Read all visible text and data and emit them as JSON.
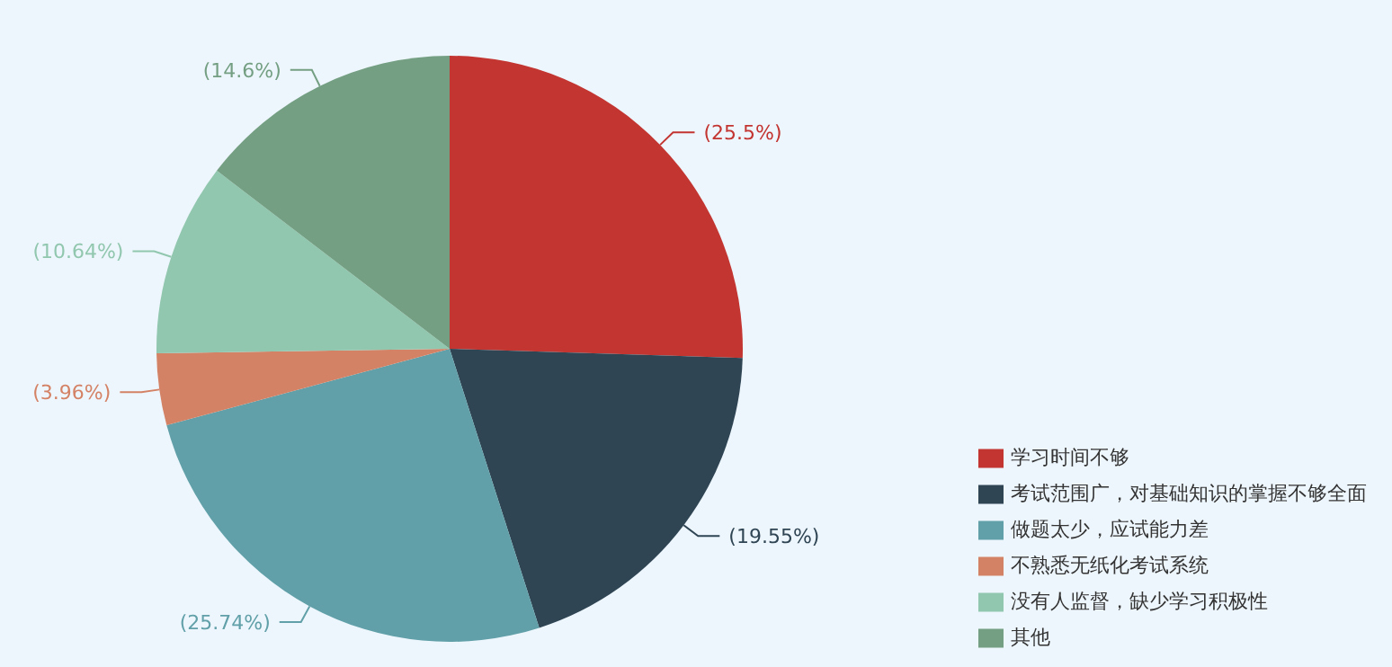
{
  "chart_data": {
    "type": "pie",
    "categories": [
      "学习时间不够",
      "考试范围广，对基础知识的掌握不够全面",
      "做题太少，应试能力差",
      "不熟悉无纸化考试系统",
      "没有人监督，缺少学习积极性",
      "其他"
    ],
    "values": [
      25.5,
      19.55,
      25.74,
      3.96,
      10.64,
      14.6
    ],
    "value_labels": [
      "(25.5%)",
      "(19.55%)",
      "(25.74%)",
      "(3.96%)",
      "(10.64%)",
      "(14.6%)"
    ],
    "colors": [
      "#c23531",
      "#2f4554",
      "#61a0a8",
      "#d48265",
      "#91c7ae",
      "#749f83"
    ],
    "legend": "bottom right"
  }
}
